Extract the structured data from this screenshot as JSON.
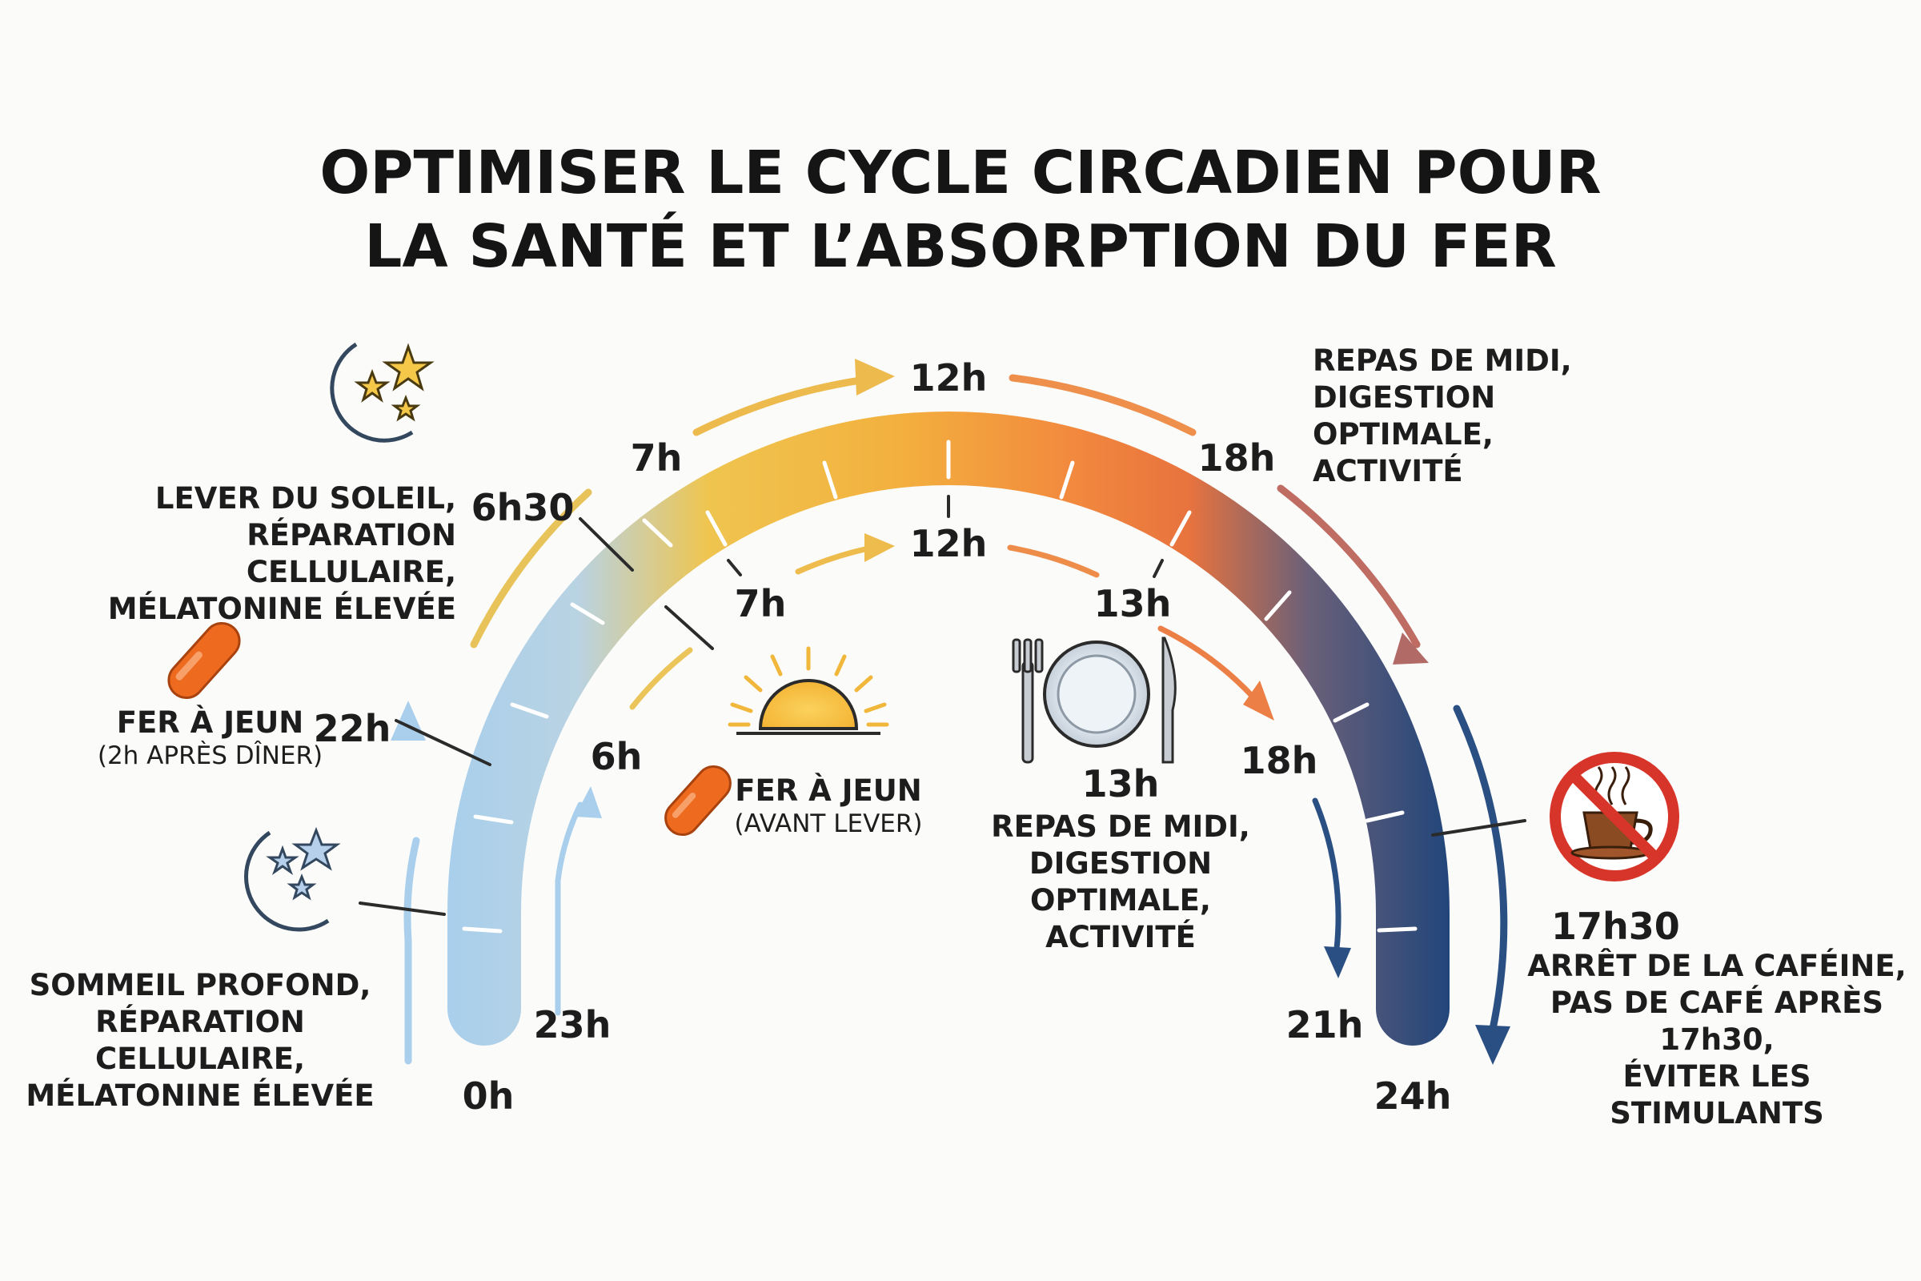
{
  "title": {
    "line1": "OPTIMISER LE CYCLE CIRCADIEN POUR",
    "line2": "LA SANTÉ ET L’ABSORPTION DU FER"
  },
  "outer_times": {
    "t0": "0h",
    "t22": "22h",
    "t6h30": "6h30",
    "t7": "7h",
    "t12": "12h",
    "t18": "18h",
    "t24": "24h"
  },
  "inner_times": {
    "t23": "23h",
    "t6": "6h",
    "t7": "7h",
    "t12": "12h",
    "t13": "13h",
    "t18": "18h",
    "t21": "21h"
  },
  "notes": {
    "lever": [
      "LEVER DU SOLEIL,",
      "RÉPARATION CELLULAIRE,",
      "MÉLATONINE ÉLEVÉE"
    ],
    "fer_diner": {
      "main": "FER À JEUN",
      "sub": "(2h APRÈS DÎNER)"
    },
    "sommeil": [
      "SOMMEIL PROFOND,",
      "RÉPARATION CELLULAIRE,",
      "MÉLATONINE ÉLEVÉE"
    ],
    "fer_lever": {
      "main": "FER À JEUN",
      "sub": "(AVANT LEVER)"
    },
    "midi_top": [
      "REPAS DE MIDI,",
      "DIGESTION OPTIMALE,",
      "ACTIVITÉ"
    ],
    "midi_center": {
      "time": "13h",
      "lines": [
        "REPAS DE MIDI,",
        "DIGESTION OPTIMALE,",
        "ACTIVITÉ"
      ]
    },
    "cafeine": {
      "time": "17h30",
      "lines": [
        "ARRÊT DE LA CAFÉINE,",
        "PAS DE CAFÉ APRÈS 17h30,",
        "ÉVITER LES STIMULANTS"
      ]
    }
  },
  "icons": {
    "moon_top": "moon-stars-icon",
    "moon_bottom": "moon-stars-icon",
    "pill_diner": "iron-pill-icon",
    "pill_lever": "iron-pill-icon",
    "sunrise": "sunrise-icon",
    "meal": "plate-cutlery-icon",
    "no_coffee": "no-coffee-icon"
  },
  "colors": {
    "night_blue": "#a9cfec",
    "morning_yellow": "#f1c24a",
    "noon_orange": "#f4a13c",
    "evening_orange": "#ef7f40",
    "night_navy": "#24477a",
    "pill": "#ee6a1f",
    "no_sign": "#d8352a"
  }
}
